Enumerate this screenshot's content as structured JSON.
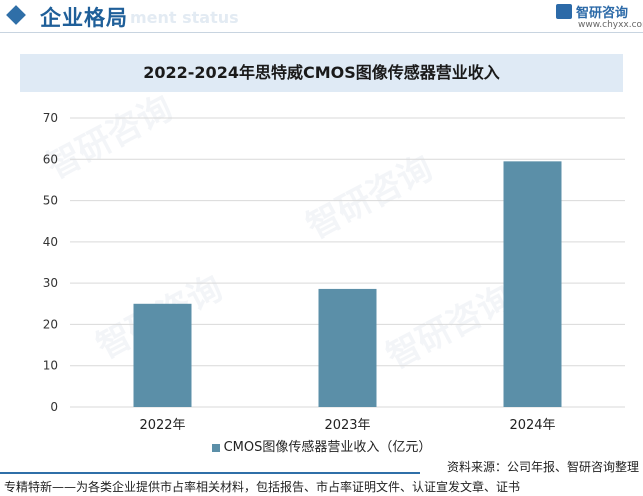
{
  "header": {
    "section_title": "企业格局",
    "ghost_text": "ment status",
    "logo_name": "智研咨询",
    "logo_url": "www.chyxx.com"
  },
  "watermark_text": "智研咨询",
  "chart_data": {
    "type": "bar",
    "title": "2022-2024年思特威CMOS图像传感器营业收入",
    "categories": [
      "2022年",
      "2023年",
      "2024年"
    ],
    "series": [
      {
        "name": "CMOS图像传感器营业收入（亿元）",
        "values": [
          25.0,
          28.6,
          59.5
        ],
        "color": "#5b8fa8"
      }
    ],
    "ylim": [
      0,
      70
    ],
    "yticks": [
      0,
      10,
      20,
      30,
      40,
      50,
      60,
      70
    ],
    "grid": true,
    "legend_position": "bottom"
  },
  "footer": {
    "source": "资料来源：公司年报、智研咨询整理",
    "tagline": "专精特新——为各类企业提供市占率相关材料，包括报告、市占率证明文件、认证宣发文章、证书"
  }
}
